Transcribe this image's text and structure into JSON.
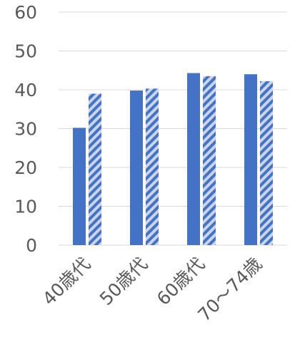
{
  "chart_data": {
    "type": "bar",
    "categories": [
      "40歳代",
      "50歳代",
      "60歳代",
      "70～74歳"
    ],
    "series": [
      {
        "values": [
          30.2,
          39.8,
          44.3,
          44.0
        ],
        "color": "#4472C4",
        "pattern": "solid"
      },
      {
        "values": [
          39.0,
          40.3,
          43.5,
          42.2
        ],
        "color": "#4472C4",
        "pattern": "diagonal-stripe"
      }
    ],
    "yticks": [
      0,
      10,
      20,
      30,
      40,
      50,
      60
    ],
    "ylim": [
      0,
      60
    ],
    "grid": true,
    "title": "",
    "xlabel": "",
    "ylabel": ""
  }
}
